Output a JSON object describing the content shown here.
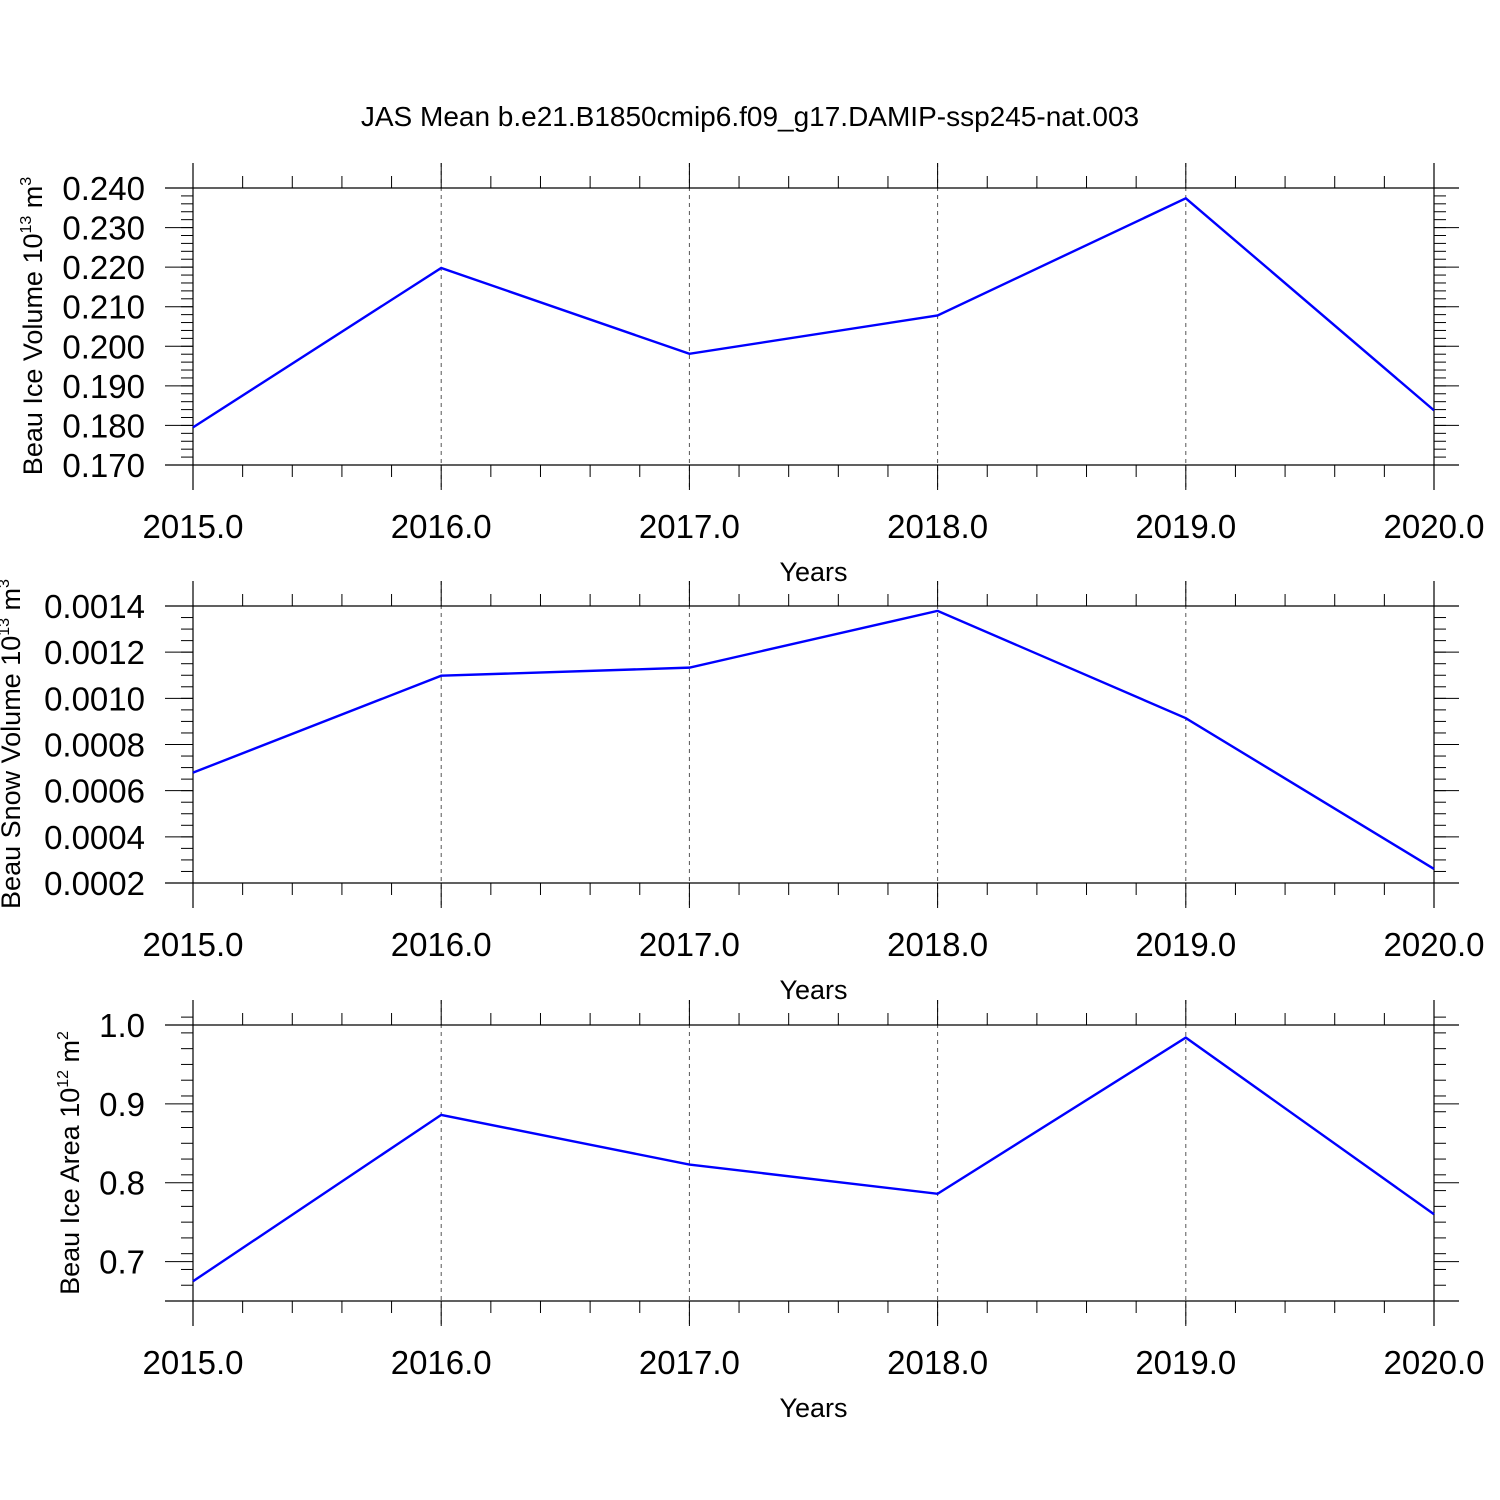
{
  "title": "JAS Mean b.e21.B1850cmip6.f09_g17.DAMIP-ssp245-nat.003",
  "colors": {
    "line": "#0000ff",
    "axis": "#000000",
    "grid": "#555555"
  },
  "chart_data": [
    {
      "type": "line",
      "xlabel": "Years",
      "ylabel": {
        "prefix": "Beau Ice Volume 10",
        "sup1": "13",
        "mid": " m",
        "sup2": "3"
      },
      "x": [
        2015,
        2016,
        2017,
        2018,
        2019,
        2020
      ],
      "xticks": [
        "2015.0",
        "2016.0",
        "2017.0",
        "2018.0",
        "2019.0",
        "2020.0"
      ],
      "xlim": [
        2015,
        2020
      ],
      "ylim": [
        0.17,
        0.24
      ],
      "yticks": [
        0.17,
        0.18,
        0.19,
        0.2,
        0.21,
        0.22,
        0.23,
        0.24
      ],
      "yticklabels": [
        "0.170",
        "0.180",
        "0.190",
        "0.200",
        "0.210",
        "0.220",
        "0.230",
        "0.240"
      ],
      "yminor_step": 0.002,
      "series": [
        {
          "values": [
            0.1795,
            0.2198,
            0.1981,
            0.2078,
            0.2374,
            0.1838
          ]
        }
      ],
      "grid": "vertical dashed at major x ticks"
    },
    {
      "type": "line",
      "xlabel": "Years",
      "ylabel": {
        "prefix": "Beau Snow Volume 10",
        "sup1": "13",
        "mid": " m",
        "sup2": "3"
      },
      "x": [
        2015,
        2016,
        2017,
        2018,
        2019,
        2020
      ],
      "xticks": [
        "2015.0",
        "2016.0",
        "2017.0",
        "2018.0",
        "2019.0",
        "2020.0"
      ],
      "xlim": [
        2015,
        2020
      ],
      "ylim": [
        0.0002,
        0.0014
      ],
      "yticks": [
        0.0002,
        0.0004,
        0.0006,
        0.0008,
        0.001,
        0.0012,
        0.0014
      ],
      "yticklabels": [
        "0.0002",
        "0.0004",
        "0.0006",
        "0.0008",
        "0.0010",
        "0.0012",
        "0.0014"
      ],
      "yminor_step": 5e-05,
      "series": [
        {
          "values": [
            0.000678,
            0.001098,
            0.001133,
            0.001379,
            0.000914,
            0.000261
          ]
        }
      ],
      "grid": "vertical dashed at major x ticks"
    },
    {
      "type": "line",
      "xlabel": "Years",
      "ylabel": {
        "prefix": "Beau Ice Area 10",
        "sup1": "12",
        "mid": " m",
        "sup2": "2"
      },
      "x": [
        2015,
        2016,
        2017,
        2018,
        2019,
        2020
      ],
      "xticks": [
        "2015.0",
        "2016.0",
        "2017.0",
        "2018.0",
        "2019.0",
        "2020.0"
      ],
      "xlim": [
        2015,
        2020
      ],
      "ylim": [
        0.65,
        1.0
      ],
      "yticks": [
        0.7,
        0.8,
        0.9,
        1.0
      ],
      "yticklabels": [
        "0.7",
        "0.8",
        "0.9",
        "1.0"
      ],
      "yminor_step": 0.02,
      "series": [
        {
          "values": [
            0.675,
            0.886,
            0.823,
            0.786,
            0.984,
            0.76
          ]
        }
      ],
      "grid": "vertical dashed at major x ticks"
    }
  ]
}
